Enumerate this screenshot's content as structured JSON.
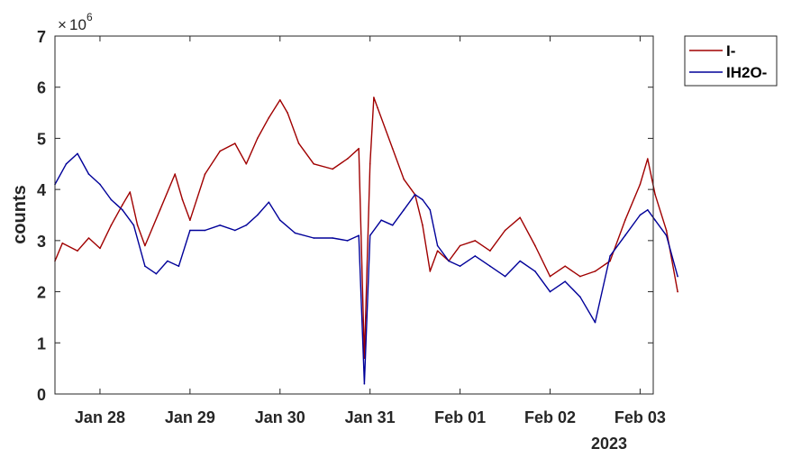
{
  "chart_data": {
    "type": "line",
    "ylabel": "counts",
    "y_exponent": "10",
    "y_exponent_power": "6",
    "y_exponent_prefix": "×",
    "ylim": [
      0,
      7
    ],
    "yticks": [
      "0",
      "1",
      "2",
      "3",
      "4",
      "5",
      "6",
      "7"
    ],
    "xlim": [
      "2023-01-27T12:00",
      "2023-02-03T03:30"
    ],
    "xticks": [
      {
        "label": "Jan 28",
        "date": "2023-01-28T00:00"
      },
      {
        "label": "Jan 29",
        "date": "2023-01-29T00:00"
      },
      {
        "label": "Jan 30",
        "date": "2023-01-30T00:00"
      },
      {
        "label": "Jan 31",
        "date": "2023-01-31T00:00"
      },
      {
        "label": "Feb 01",
        "date": "2023-02-01T00:00"
      },
      {
        "label": "Feb 02",
        "date": "2023-02-02T00:00"
      },
      {
        "label": "Feb 03",
        "date": "2023-02-03T00:00"
      }
    ],
    "year_label": "2023",
    "legend_position": "outside top-right",
    "grid": false,
    "series": [
      {
        "name": "I-",
        "color": "#a00000",
        "points": [
          [
            "2023-01-27T12:00",
            2.6
          ],
          [
            "2023-01-27T14:00",
            2.95
          ],
          [
            "2023-01-27T18:00",
            2.8
          ],
          [
            "2023-01-27T21:00",
            3.05
          ],
          [
            "2023-01-28T00:00",
            2.85
          ],
          [
            "2023-01-28T03:00",
            3.3
          ],
          [
            "2023-01-28T06:00",
            3.7
          ],
          [
            "2023-01-28T08:00",
            3.95
          ],
          [
            "2023-01-28T10:00",
            3.3
          ],
          [
            "2023-01-28T12:00",
            2.9
          ],
          [
            "2023-01-28T16:00",
            3.6
          ],
          [
            "2023-01-28T20:00",
            4.3
          ],
          [
            "2023-01-28T22:00",
            3.8
          ],
          [
            "2023-01-29T00:00",
            3.4
          ],
          [
            "2023-01-29T04:00",
            4.3
          ],
          [
            "2023-01-29T08:00",
            4.75
          ],
          [
            "2023-01-29T12:00",
            4.9
          ],
          [
            "2023-01-29T15:00",
            4.5
          ],
          [
            "2023-01-29T18:00",
            5.0
          ],
          [
            "2023-01-29T21:00",
            5.4
          ],
          [
            "2023-01-30T00:00",
            5.75
          ],
          [
            "2023-01-30T02:00",
            5.5
          ],
          [
            "2023-01-30T05:00",
            4.9
          ],
          [
            "2023-01-30T09:00",
            4.5
          ],
          [
            "2023-01-30T14:00",
            4.4
          ],
          [
            "2023-01-30T18:00",
            4.6
          ],
          [
            "2023-01-30T21:00",
            4.8
          ],
          [
            "2023-01-30T22:30",
            0.7
          ],
          [
            "2023-01-31T00:00",
            4.5
          ],
          [
            "2023-01-31T01:00",
            5.8
          ],
          [
            "2023-01-31T02:00",
            5.6
          ],
          [
            "2023-01-31T06:00",
            4.8
          ],
          [
            "2023-01-31T09:00",
            4.2
          ],
          [
            "2023-01-31T12:00",
            3.9
          ],
          [
            "2023-01-31T14:00",
            3.3
          ],
          [
            "2023-01-31T16:00",
            2.4
          ],
          [
            "2023-01-31T18:00",
            2.8
          ],
          [
            "2023-01-31T21:00",
            2.6
          ],
          [
            "2023-02-01T00:00",
            2.9
          ],
          [
            "2023-02-01T04:00",
            3.0
          ],
          [
            "2023-02-01T08:00",
            2.8
          ],
          [
            "2023-02-01T12:00",
            3.2
          ],
          [
            "2023-02-01T16:00",
            3.45
          ],
          [
            "2023-02-01T20:00",
            2.9
          ],
          [
            "2023-02-02T00:00",
            2.3
          ],
          [
            "2023-02-02T04:00",
            2.5
          ],
          [
            "2023-02-02T08:00",
            2.3
          ],
          [
            "2023-02-02T12:00",
            2.4
          ],
          [
            "2023-02-02T16:00",
            2.6
          ],
          [
            "2023-02-02T20:00",
            3.4
          ],
          [
            "2023-02-03T00:00",
            4.1
          ],
          [
            "2023-02-03T02:00",
            4.6
          ],
          [
            "2023-02-03T04:00",
            3.9
          ],
          [
            "2023-02-03T07:00",
            3.2
          ],
          [
            "2023-02-03T10:00",
            2.0
          ]
        ]
      },
      {
        "name": "IH2O-",
        "color": "#000099",
        "points": [
          [
            "2023-01-27T12:00",
            4.1
          ],
          [
            "2023-01-27T15:00",
            4.5
          ],
          [
            "2023-01-27T18:00",
            4.7
          ],
          [
            "2023-01-27T21:00",
            4.3
          ],
          [
            "2023-01-28T00:00",
            4.1
          ],
          [
            "2023-01-28T03:00",
            3.8
          ],
          [
            "2023-01-28T06:00",
            3.6
          ],
          [
            "2023-01-28T09:00",
            3.3
          ],
          [
            "2023-01-28T12:00",
            2.5
          ],
          [
            "2023-01-28T15:00",
            2.35
          ],
          [
            "2023-01-28T18:00",
            2.6
          ],
          [
            "2023-01-28T21:00",
            2.5
          ],
          [
            "2023-01-29T00:00",
            3.2
          ],
          [
            "2023-01-29T04:00",
            3.2
          ],
          [
            "2023-01-29T08:00",
            3.3
          ],
          [
            "2023-01-29T12:00",
            3.2
          ],
          [
            "2023-01-29T15:00",
            3.3
          ],
          [
            "2023-01-29T18:00",
            3.5
          ],
          [
            "2023-01-29T21:00",
            3.75
          ],
          [
            "2023-01-30T00:00",
            3.4
          ],
          [
            "2023-01-30T04:00",
            3.15
          ],
          [
            "2023-01-30T09:00",
            3.05
          ],
          [
            "2023-01-30T14:00",
            3.05
          ],
          [
            "2023-01-30T18:00",
            3.0
          ],
          [
            "2023-01-30T21:00",
            3.1
          ],
          [
            "2023-01-30T22:30",
            0.2
          ],
          [
            "2023-01-31T00:00",
            3.1
          ],
          [
            "2023-01-31T03:00",
            3.4
          ],
          [
            "2023-01-31T06:00",
            3.3
          ],
          [
            "2023-01-31T09:00",
            3.6
          ],
          [
            "2023-01-31T12:00",
            3.9
          ],
          [
            "2023-01-31T14:00",
            3.8
          ],
          [
            "2023-01-31T16:00",
            3.6
          ],
          [
            "2023-01-31T18:00",
            2.9
          ],
          [
            "2023-01-31T21:00",
            2.6
          ],
          [
            "2023-02-01T00:00",
            2.5
          ],
          [
            "2023-02-01T04:00",
            2.7
          ],
          [
            "2023-02-01T08:00",
            2.5
          ],
          [
            "2023-02-01T12:00",
            2.3
          ],
          [
            "2023-02-01T16:00",
            2.6
          ],
          [
            "2023-02-01T20:00",
            2.4
          ],
          [
            "2023-02-02T00:00",
            2.0
          ],
          [
            "2023-02-02T04:00",
            2.2
          ],
          [
            "2023-02-02T08:00",
            1.9
          ],
          [
            "2023-02-02T12:00",
            1.4
          ],
          [
            "2023-02-02T16:00",
            2.7
          ],
          [
            "2023-02-02T20:00",
            3.1
          ],
          [
            "2023-02-03T00:00",
            3.5
          ],
          [
            "2023-02-03T02:00",
            3.6
          ],
          [
            "2023-02-03T04:00",
            3.4
          ],
          [
            "2023-02-03T07:00",
            3.1
          ],
          [
            "2023-02-03T10:00",
            2.3
          ]
        ]
      }
    ]
  }
}
